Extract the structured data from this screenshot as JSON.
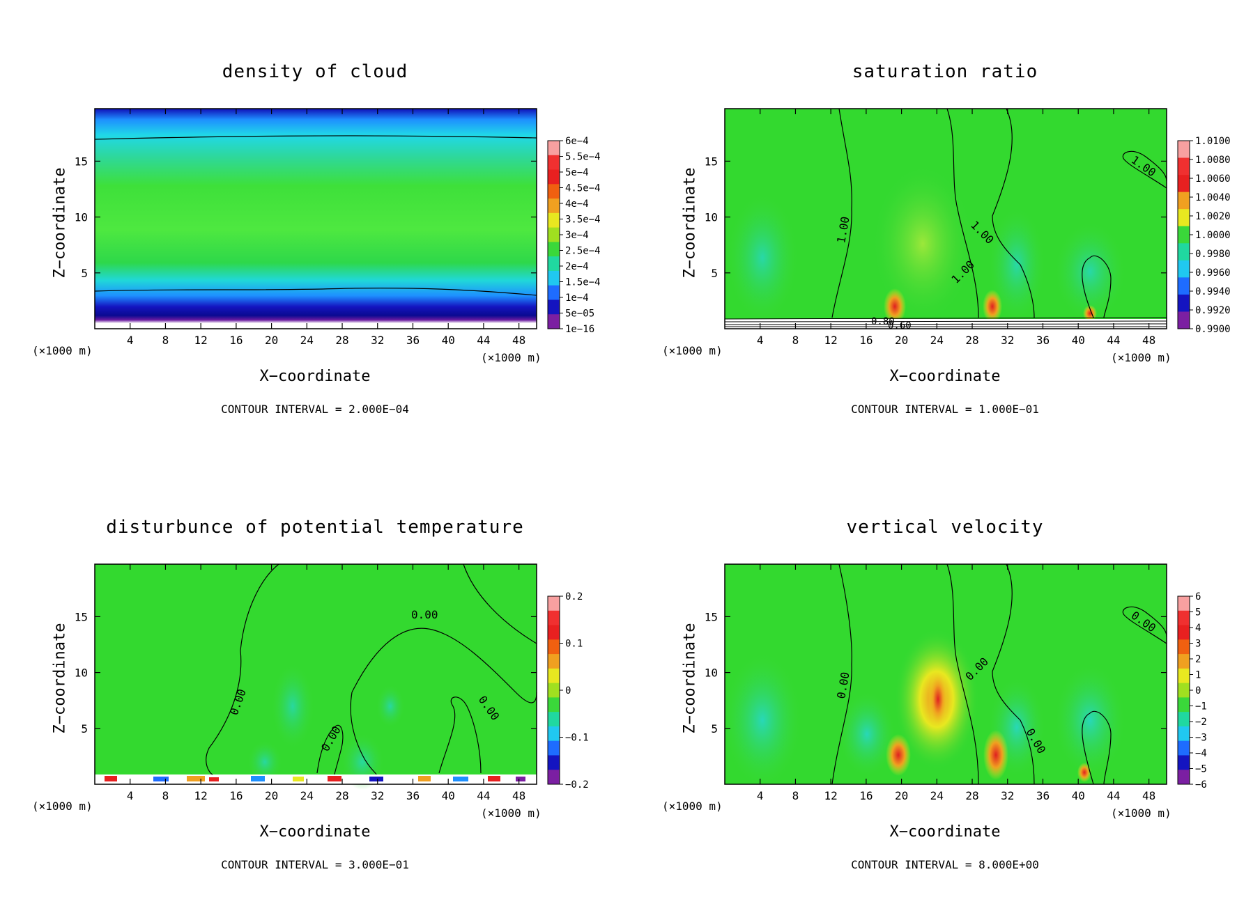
{
  "panels": [
    {
      "title": "density of cloud",
      "xlabel": "X−coordinate",
      "ylabel": "Z−coordinate",
      "unit_left": "(×1000 m)",
      "unit_right": "(×1000 m)",
      "caption": "CONTOUR INTERVAL = 2.000E−04",
      "xticks": [
        "4",
        "8",
        "12",
        "16",
        "20",
        "24",
        "28",
        "32",
        "36",
        "40",
        "44",
        "48"
      ],
      "yticks": [
        "5",
        "10",
        "15"
      ],
      "colorbar": [
        "6e−4",
        "5.5e−4",
        "5e−4",
        "4.5e−4",
        "4e−4",
        "3.5e−4",
        "3e−4",
        "2.5e−4",
        "2e−4",
        "1.5e−4",
        "1e−4",
        "5e−05",
        "1e−16"
      ],
      "contour_labels": []
    },
    {
      "title": "saturation ratio",
      "xlabel": "X−coordinate",
      "ylabel": "Z−coordinate",
      "unit_left": "(×1000 m)",
      "unit_right": "(×1000 m)",
      "caption": "CONTOUR INTERVAL = 1.000E−01",
      "xticks": [
        "4",
        "8",
        "12",
        "16",
        "20",
        "24",
        "28",
        "32",
        "36",
        "40",
        "44",
        "48"
      ],
      "yticks": [
        "5",
        "10",
        "15"
      ],
      "colorbar": [
        "1.0100",
        "1.0080",
        "1.0060",
        "1.0040",
        "1.0020",
        "1.0000",
        "0.9980",
        "0.9960",
        "0.9940",
        "0.9920",
        "0.9900"
      ],
      "contour_labels": [
        "1.00",
        "1.00",
        "1.00",
        "1.00",
        "0.80",
        "0.60"
      ]
    },
    {
      "title": "disturbunce of potential temperature",
      "xlabel": "X−coordinate",
      "ylabel": "Z−coordinate",
      "unit_left": "(×1000 m)",
      "unit_right": "(×1000 m)",
      "caption": "CONTOUR INTERVAL = 3.000E−01",
      "xticks": [
        "4",
        "8",
        "12",
        "16",
        "20",
        "24",
        "28",
        "32",
        "36",
        "40",
        "44",
        "48"
      ],
      "yticks": [
        "5",
        "10",
        "15"
      ],
      "colorbar": [
        "0.2",
        "0.1",
        "0",
        "−0.1",
        "−0.2"
      ],
      "contour_labels": [
        "0.00",
        "0.00",
        "0.00",
        "0.00"
      ]
    },
    {
      "title": "vertical velocity",
      "xlabel": "X−coordinate",
      "ylabel": "Z−coordinate",
      "unit_left": "(×1000 m)",
      "unit_right": "(×1000 m)",
      "caption": "CONTOUR INTERVAL = 8.000E+00",
      "xticks": [
        "4",
        "8",
        "12",
        "16",
        "20",
        "24",
        "28",
        "32",
        "36",
        "40",
        "44",
        "48"
      ],
      "yticks": [
        "5",
        "10",
        "15"
      ],
      "colorbar": [
        "6",
        "5",
        "4",
        "3",
        "2",
        "1",
        "0",
        "−1",
        "−2",
        "−3",
        "−4",
        "−5",
        "−6"
      ],
      "contour_labels": [
        "0.00",
        "0.00",
        "0.00",
        "0.00"
      ]
    }
  ],
  "chart_data": [
    {
      "type": "heatmap",
      "title": "density of cloud",
      "xlabel": "X−coordinate (×1000 m)",
      "ylabel": "Z−coordinate (×1000 m)",
      "xlim": [
        0,
        50
      ],
      "ylim": [
        0,
        19.7
      ],
      "colorbar_levels": [
        "1e-16",
        "5e-05",
        "1e-4",
        "1.5e-4",
        "2e-4",
        "2.5e-4",
        "3e-4",
        "3.5e-4",
        "4e-4",
        "4.5e-4",
        "5e-4",
        "5.5e-4",
        "6e-4"
      ],
      "contour_interval": "2.000E-04"
    },
    {
      "type": "heatmap",
      "title": "saturation ratio",
      "xlabel": "X−coordinate (×1000 m)",
      "ylabel": "Z−coordinate (×1000 m)",
      "xlim": [
        0,
        50
      ],
      "ylim": [
        0,
        19.7
      ],
      "colorbar_levels": [
        "0.9900",
        "0.9920",
        "0.9940",
        "0.9960",
        "0.9980",
        "1.0000",
        "1.0020",
        "1.0040",
        "1.0060",
        "1.0080",
        "1.0100"
      ],
      "contour_interval": "1.000E-01"
    },
    {
      "type": "heatmap",
      "title": "disturbunce of potential temperature",
      "xlabel": "X−coordinate (×1000 m)",
      "ylabel": "Z−coordinate (×1000 m)",
      "xlim": [
        0,
        50
      ],
      "ylim": [
        0,
        19.7
      ],
      "colorbar_levels": [
        "-0.2",
        "-0.1",
        "0",
        "0.1",
        "0.2"
      ],
      "contour_interval": "3.000E-01"
    },
    {
      "type": "heatmap",
      "title": "vertical velocity",
      "xlabel": "X−coordinate (×1000 m)",
      "ylabel": "Z−coordinate (×1000 m)",
      "xlim": [
        0,
        50
      ],
      "ylim": [
        0,
        19.7
      ],
      "colorbar_levels": [
        "-6",
        "-5",
        "-4",
        "-3",
        "-2",
        "-1",
        "0",
        "1",
        "2",
        "3",
        "4",
        "5",
        "6"
      ],
      "contour_interval": "8.000E+00"
    }
  ],
  "colors": {
    "field_green": "#2ed82e",
    "deep_blue": "#0a0aa8",
    "purple": "#7b1fa2",
    "cyan": "#20e0e0",
    "red": "#e82020",
    "yellow": "#e8e820"
  }
}
